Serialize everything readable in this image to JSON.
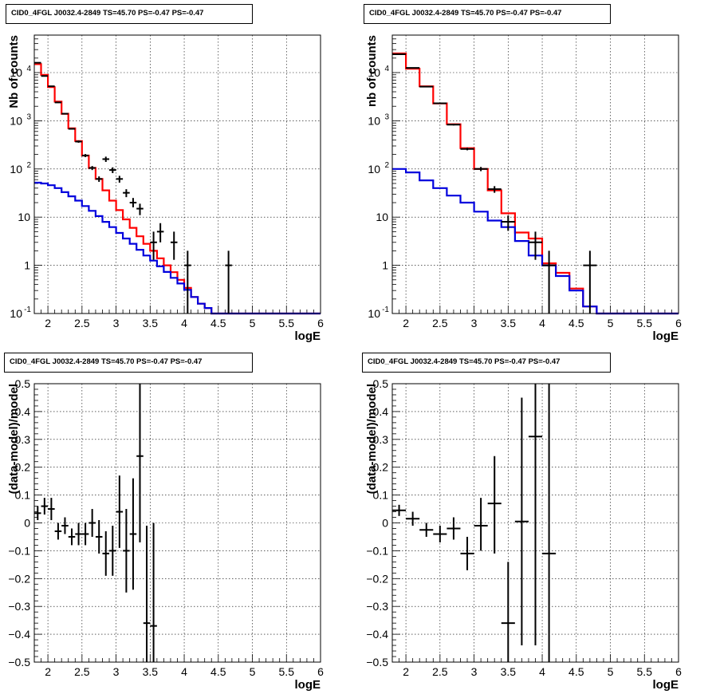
{
  "chart_data": [
    {
      "id": "top-left",
      "type": "histogram",
      "title": "CID0_4FGL J0032.4-2849 TS=45.70 PS=-0.47 PS=-0.47",
      "xlabel": "logE",
      "ylabel": "Nb of counts",
      "xlim": [
        1.8,
        6.0
      ],
      "ylim": [
        0.1,
        60000
      ],
      "ylog": true,
      "grid": true,
      "x_ticks": [
        "2",
        "2.5",
        "3",
        "3.5",
        "4",
        "4.5",
        "5",
        "5.5",
        "6"
      ],
      "y_ticks": [
        "10^-1",
        "1",
        "10",
        "10^2",
        "10^3",
        "10^4"
      ],
      "bin_edges": [
        1.8,
        1.9,
        2.0,
        2.1,
        2.2,
        2.3,
        2.4,
        2.5,
        2.6,
        2.7,
        2.8,
        2.9,
        3.0,
        3.1,
        3.2,
        3.3,
        3.4,
        3.5,
        3.6,
        3.7,
        3.8,
        3.9,
        4.0,
        4.1,
        4.2,
        4.3,
        4.4,
        4.5,
        4.6,
        4.7,
        4.8,
        4.9,
        5.0,
        5.1,
        5.2,
        5.3,
        5.4,
        5.5,
        5.6,
        5.7,
        5.8,
        5.9,
        6.0
      ],
      "series": [
        {
          "color": "#ff0000",
          "values": [
            15000,
            9000,
            5000,
            2500,
            1400,
            700,
            380,
            190,
            105,
            62,
            36,
            22,
            14,
            9,
            6,
            4,
            2.8,
            2,
            1.4,
            1,
            0.72,
            0.5,
            0.34,
            0.22,
            0.16,
            0.13,
            0.1,
            0.1,
            0.1,
            0.1,
            0.1,
            0.1,
            0.1,
            0.1,
            0.1,
            0.1,
            0.1,
            0.1,
            0.1,
            0.1,
            0.1,
            0.1
          ]
        },
        {
          "color": "#0000dd",
          "values": [
            52,
            50,
            46,
            40,
            33,
            27,
            22,
            17,
            13.5,
            10.5,
            8,
            6.2,
            4.7,
            3.6,
            2.8,
            2.1,
            1.6,
            1.25,
            0.95,
            0.73,
            0.55,
            0.42,
            0.31,
            0.22,
            0.16,
            0.13,
            0.1,
            0.1,
            0.1,
            0.1,
            0.1,
            0.1,
            0.1,
            0.1,
            0.1,
            0.1,
            0.1,
            0.1,
            0.1,
            0.1,
            0.1,
            0.1
          ]
        }
      ],
      "points": [
        {
          "x": 1.85,
          "y": 16000,
          "dx": 0.05,
          "lo": 15800,
          "hi": 16200
        },
        {
          "x": 1.95,
          "y": 8500,
          "dx": 0.05,
          "lo": 8400,
          "hi": 8600
        },
        {
          "x": 2.05,
          "y": 5200,
          "dx": 0.05,
          "lo": 5100,
          "hi": 5300
        },
        {
          "x": 2.15,
          "y": 2400,
          "dx": 0.05,
          "lo": 2350,
          "hi": 2450
        },
        {
          "x": 2.25,
          "y": 1400,
          "dx": 0.05,
          "lo": 1360,
          "hi": 1440
        },
        {
          "x": 2.35,
          "y": 680,
          "dx": 0.05,
          "lo": 655,
          "hi": 705
        },
        {
          "x": 2.45,
          "y": 370,
          "dx": 0.05,
          "lo": 350,
          "hi": 390
        },
        {
          "x": 2.55,
          "y": 190,
          "dx": 0.05,
          "lo": 176,
          "hi": 204
        },
        {
          "x": 2.65,
          "y": 105,
          "dx": 0.05,
          "lo": 95,
          "hi": 115
        },
        {
          "x": 2.75,
          "y": 62,
          "dx": 0.05,
          "lo": 54,
          "hi": 70
        },
        {
          "x": 2.85,
          "y": 160,
          "dx": 0.05,
          "lo": 140,
          "hi": 180
        },
        {
          "x": 2.95,
          "y": 95,
          "dx": 0.05,
          "lo": 82,
          "hi": 108
        },
        {
          "x": 3.05,
          "y": 62,
          "dx": 0.05,
          "lo": 52,
          "hi": 72
        },
        {
          "x": 3.15,
          "y": 32,
          "dx": 0.05,
          "lo": 26,
          "hi": 38
        },
        {
          "x": 3.25,
          "y": 20,
          "dx": 0.05,
          "lo": 16,
          "hi": 25
        },
        {
          "x": 3.35,
          "y": 15,
          "dx": 0.05,
          "lo": 11,
          "hi": 19
        },
        {
          "x": 3.55,
          "y": 3,
          "dx": 0.05,
          "lo": 1.3,
          "hi": 5
        },
        {
          "x": 3.65,
          "y": 5,
          "dx": 0.05,
          "lo": 3,
          "hi": 7.5
        },
        {
          "x": 3.85,
          "y": 3,
          "dx": 0.05,
          "lo": 1.3,
          "hi": 5
        },
        {
          "x": 4.05,
          "y": 1,
          "dx": 0.05,
          "lo": 0.1,
          "hi": 2
        },
        {
          "x": 4.65,
          "y": 1,
          "dx": 0.05,
          "lo": 0.1,
          "hi": 2
        }
      ]
    },
    {
      "id": "top-right",
      "type": "histogram",
      "title": "CID0_4FGL J0032.4-2849 TS=45.70 PS=-0.47 PS=-0.47",
      "xlabel": "logE",
      "ylabel": "nb of counts",
      "xlim": [
        1.8,
        6.0
      ],
      "ylim": [
        0.1,
        60000
      ],
      "ylog": true,
      "grid": true,
      "x_ticks": [
        "2",
        "2.5",
        "3",
        "3.5",
        "4",
        "4.5",
        "5",
        "5.5",
        "6"
      ],
      "y_ticks": [
        "10^-1",
        "1",
        "10",
        "10^2",
        "10^3",
        "10^4"
      ],
      "bin_edges": [
        1.8,
        2.0,
        2.2,
        2.4,
        2.6,
        2.8,
        3.0,
        3.2,
        3.4,
        3.6,
        3.8,
        4.0,
        4.2,
        4.4,
        4.6,
        4.8,
        5.0,
        5.2,
        5.4,
        5.6,
        5.8,
        6.0
      ],
      "series": [
        {
          "color": "#ff0000",
          "values": [
            25000,
            12000,
            5200,
            2300,
            850,
            270,
            100,
            36,
            12,
            4.8,
            3.6,
            1.1,
            0.7,
            0.33,
            0.14,
            0.1,
            0.1,
            0.1,
            0.1,
            0.1,
            0.1
          ]
        },
        {
          "color": "#0000dd",
          "values": [
            100,
            85,
            58,
            40,
            28,
            20,
            13,
            8.5,
            6.2,
            3.2,
            1.6,
            1,
            0.6,
            0.3,
            0.14,
            0.1,
            0.1,
            0.1,
            0.1,
            0.1,
            0.1
          ]
        }
      ],
      "points": [
        {
          "x": 1.9,
          "y": 24000,
          "dx": 0.1,
          "lo": 23700,
          "hi": 24300
        },
        {
          "x": 2.1,
          "y": 12500,
          "dx": 0.1,
          "lo": 12300,
          "hi": 12700
        },
        {
          "x": 2.3,
          "y": 5100,
          "dx": 0.1,
          "lo": 5000,
          "hi": 5200
        },
        {
          "x": 2.5,
          "y": 2300,
          "dx": 0.1,
          "lo": 2250,
          "hi": 2350
        },
        {
          "x": 2.7,
          "y": 830,
          "dx": 0.1,
          "lo": 800,
          "hi": 860
        },
        {
          "x": 2.9,
          "y": 260,
          "dx": 0.1,
          "lo": 244,
          "hi": 276
        },
        {
          "x": 3.1,
          "y": 100,
          "dx": 0.1,
          "lo": 90,
          "hi": 110
        },
        {
          "x": 3.3,
          "y": 38,
          "dx": 0.1,
          "lo": 32,
          "hi": 44
        },
        {
          "x": 3.5,
          "y": 8,
          "dx": 0.1,
          "lo": 5.2,
          "hi": 10.8
        },
        {
          "x": 3.9,
          "y": 3,
          "dx": 0.1,
          "lo": 1.3,
          "hi": 5
        },
        {
          "x": 4.1,
          "y": 1,
          "dx": 0.1,
          "lo": 0.1,
          "hi": 2
        },
        {
          "x": 4.7,
          "y": 1,
          "dx": 0.1,
          "lo": 0.1,
          "hi": 2
        }
      ]
    },
    {
      "id": "bottom-left",
      "type": "scatter",
      "title": "CID0_4FGL J0032.4-2849 TS=45.70 PS=-0.47 PS=-0.47",
      "xlabel": "logE",
      "ylabel": "(data-model)/model",
      "xlim": [
        1.8,
        6.0
      ],
      "ylim": [
        -0.5,
        0.5
      ],
      "ylog": false,
      "grid": true,
      "x_ticks": [
        "2",
        "2.5",
        "3",
        "3.5",
        "4",
        "4.5",
        "5",
        "5.5",
        "6"
      ],
      "y_ticks": [
        "−0.5",
        "−0.4",
        "−0.3",
        "−0.2",
        "−0.1",
        "0",
        "0.1",
        "0.2",
        "0.3",
        "0.4",
        "0.5"
      ],
      "points": [
        {
          "x": 1.85,
          "y": 0.035,
          "dx": 0.05,
          "lo": 0.01,
          "hi": 0.06
        },
        {
          "x": 1.95,
          "y": 0.06,
          "dx": 0.05,
          "lo": 0.03,
          "hi": 0.09
        },
        {
          "x": 2.05,
          "y": 0.05,
          "dx": 0.05,
          "lo": 0.01,
          "hi": 0.09
        },
        {
          "x": 2.15,
          "y": -0.03,
          "dx": 0.05,
          "lo": -0.06,
          "hi": 0.0
        },
        {
          "x": 2.25,
          "y": -0.01,
          "dx": 0.05,
          "lo": -0.04,
          "hi": 0.02
        },
        {
          "x": 2.35,
          "y": -0.05,
          "dx": 0.05,
          "lo": -0.08,
          "hi": -0.02
        },
        {
          "x": 2.45,
          "y": -0.04,
          "dx": 0.05,
          "lo": -0.08,
          "hi": 0.0
        },
        {
          "x": 2.55,
          "y": -0.04,
          "dx": 0.05,
          "lo": -0.08,
          "hi": 0.0
        },
        {
          "x": 2.65,
          "y": 0.0,
          "dx": 0.05,
          "lo": -0.05,
          "hi": 0.05
        },
        {
          "x": 2.75,
          "y": -0.05,
          "dx": 0.05,
          "lo": -0.11,
          "hi": 0.01
        },
        {
          "x": 2.85,
          "y": -0.11,
          "dx": 0.05,
          "lo": -0.19,
          "hi": -0.03
        },
        {
          "x": 2.95,
          "y": -0.1,
          "dx": 0.05,
          "lo": -0.19,
          "hi": -0.01
        },
        {
          "x": 3.05,
          "y": 0.04,
          "dx": 0.05,
          "lo": -0.09,
          "hi": 0.17
        },
        {
          "x": 3.15,
          "y": -0.1,
          "dx": 0.05,
          "lo": -0.25,
          "hi": 0.05
        },
        {
          "x": 3.25,
          "y": -0.04,
          "dx": 0.05,
          "lo": -0.24,
          "hi": 0.16
        },
        {
          "x": 3.35,
          "y": 0.24,
          "dx": 0.05,
          "lo": -0.07,
          "hi": 0.5
        },
        {
          "x": 3.45,
          "y": -0.36,
          "dx": 0.05,
          "lo": -0.5,
          "hi": -0.01
        },
        {
          "x": 3.55,
          "y": -0.37,
          "dx": 0.05,
          "lo": -0.5,
          "hi": 0.0
        }
      ]
    },
    {
      "id": "bottom-right",
      "type": "scatter",
      "title": "CID0_4FGL J0032.4-2849 TS=45.70 PS=-0.47 PS=-0.47",
      "xlabel": "logE",
      "ylabel": "(data-model)/model",
      "xlim": [
        1.8,
        6.0
      ],
      "ylim": [
        -0.5,
        0.5
      ],
      "ylog": false,
      "grid": true,
      "x_ticks": [
        "2",
        "2.5",
        "3",
        "3.5",
        "4",
        "4.5",
        "5",
        "5.5",
        "6"
      ],
      "y_ticks": [
        "−0.5",
        "−0.4",
        "−0.3",
        "−0.2",
        "−0.1",
        "0",
        "0.1",
        "0.2",
        "0.3",
        "0.4",
        "0.5"
      ],
      "points": [
        {
          "x": 1.9,
          "y": 0.045,
          "dx": 0.1,
          "lo": 0.025,
          "hi": 0.065
        },
        {
          "x": 2.1,
          "y": 0.015,
          "dx": 0.1,
          "lo": -0.01,
          "hi": 0.04
        },
        {
          "x": 2.3,
          "y": -0.025,
          "dx": 0.1,
          "lo": -0.05,
          "hi": 0.0
        },
        {
          "x": 2.5,
          "y": -0.04,
          "dx": 0.1,
          "lo": -0.07,
          "hi": -0.01
        },
        {
          "x": 2.7,
          "y": -0.02,
          "dx": 0.1,
          "lo": -0.06,
          "hi": 0.02
        },
        {
          "x": 2.9,
          "y": -0.11,
          "dx": 0.1,
          "lo": -0.17,
          "hi": -0.05
        },
        {
          "x": 3.1,
          "y": -0.01,
          "dx": 0.1,
          "lo": -0.1,
          "hi": 0.09
        },
        {
          "x": 3.3,
          "y": 0.07,
          "dx": 0.1,
          "lo": -0.11,
          "hi": 0.24
        },
        {
          "x": 3.5,
          "y": -0.36,
          "dx": 0.1,
          "lo": -0.5,
          "hi": -0.14
        },
        {
          "x": 3.7,
          "y": 0.005,
          "dx": 0.1,
          "lo": -0.44,
          "hi": 0.45
        },
        {
          "x": 3.9,
          "y": 0.31,
          "dx": 0.1,
          "lo": -0.44,
          "hi": 0.5
        },
        {
          "x": 4.1,
          "y": -0.11,
          "dx": 0.1,
          "lo": -0.5,
          "hi": 0.5
        }
      ]
    }
  ]
}
